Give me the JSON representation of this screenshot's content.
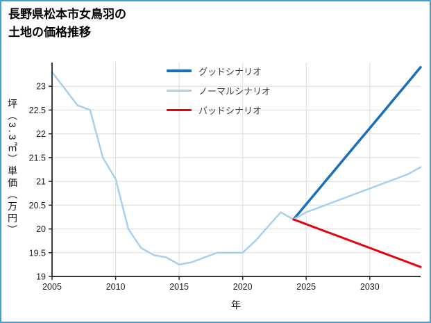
{
  "frame": {
    "border_color": "#3fa0d8",
    "background": "#ffffff"
  },
  "chart_data": {
    "type": "line",
    "title": "長野県松本市女鳥羽の土地の価格推移",
    "title_lines": [
      "長野県松本市女鳥羽の",
      "土地の価格推移"
    ],
    "xlabel": "年",
    "ylabel": "坪（3.3㎡）単価（万円）",
    "xlim": [
      2005,
      2034
    ],
    "ylim": [
      19,
      23.5
    ],
    "xticks": [
      2005,
      2010,
      2015,
      2020,
      2025,
      2030
    ],
    "yticks": [
      19,
      19.5,
      20,
      20.5,
      21,
      21.5,
      22,
      22.5,
      23
    ],
    "grid": true,
    "grid_color": "#dcdcdc",
    "axis_color": "#1a1a1a",
    "legend_position": "upper center",
    "legend": [
      "グッドシナリオ",
      "ノーマルシナリオ",
      "バッドシナリオ"
    ],
    "series": [
      {
        "name": "グッドシナリオ",
        "color": "#1b6fba",
        "line_width": 3.5,
        "x": [
          2024,
          2025,
          2026,
          2027,
          2028,
          2029,
          2030,
          2031,
          2032,
          2033,
          2034
        ],
        "values": [
          20.2,
          20.52,
          20.84,
          21.16,
          21.48,
          21.8,
          22.12,
          22.44,
          22.76,
          23.08,
          23.4
        ]
      },
      {
        "name": "ノーマルシナリオ",
        "color": "#a8d0ec",
        "line_width": 2.5,
        "x": [
          2005,
          2006,
          2007,
          2008,
          2009,
          2010,
          2011,
          2012,
          2013,
          2014,
          2015,
          2016,
          2017,
          2018,
          2019,
          2020,
          2021,
          2022,
          2023,
          2024,
          2025,
          2026,
          2027,
          2028,
          2029,
          2030,
          2031,
          2032,
          2033,
          2034
        ],
        "values": [
          23.3,
          22.95,
          22.6,
          22.5,
          21.5,
          21.05,
          20.0,
          19.6,
          19.45,
          19.4,
          19.25,
          19.3,
          19.4,
          19.5,
          19.5,
          19.5,
          19.75,
          20.05,
          20.35,
          20.2,
          20.35,
          20.45,
          20.55,
          20.65,
          20.75,
          20.85,
          20.95,
          21.05,
          21.15,
          21.3
        ]
      },
      {
        "name": "バッドシナリオ",
        "color": "#e8000d",
        "line_width": 3,
        "x": [
          2024,
          2025,
          2026,
          2027,
          2028,
          2029,
          2030,
          2031,
          2032,
          2033,
          2034
        ],
        "values": [
          20.2,
          20.1,
          20.0,
          19.9,
          19.8,
          19.7,
          19.6,
          19.5,
          19.4,
          19.3,
          19.2
        ]
      }
    ]
  }
}
